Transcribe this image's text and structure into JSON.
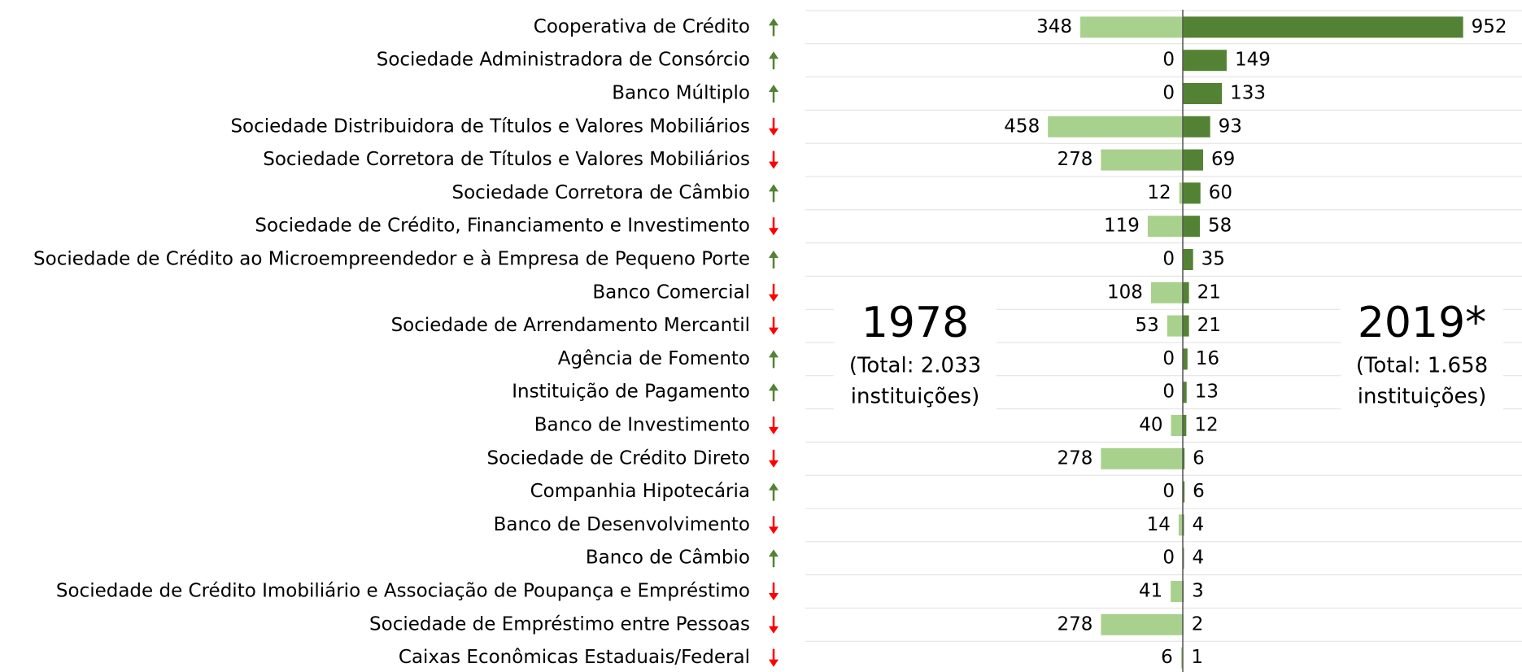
{
  "chart_data": {
    "type": "butterfly-bar",
    "categories": [
      "Cooperativa de Crédito",
      "Sociedade Administradora de Consórcio",
      "Banco Múltiplo",
      "Sociedade Distribuidora de Títulos e Valores Mobiliários",
      "Sociedade Corretora de Títulos e Valores Mobiliários",
      "Sociedade Corretora de Câmbio",
      "Sociedade de Crédito, Financiamento e Investimento",
      "Sociedade de Crédito ao Microempreendedor e à Empresa de Pequeno Porte",
      "Banco Comercial",
      "Sociedade de Arrendamento Mercantil",
      "Agência de Fomento",
      "Instituição de Pagamento",
      "Banco de Investimento",
      "Sociedade de Crédito Direto",
      "Companhia Hipotecária",
      "Banco de Desenvolvimento",
      "Banco de Câmbio",
      "Sociedade de Crédito Imobiliário e Associação de Poupança e Empréstimo",
      "Sociedade de Empréstimo entre Pessoas",
      "Caixas Econômicas Estaduais/Federal"
    ],
    "series": [
      {
        "name": "1978",
        "color": "#a9d18e",
        "side": "left",
        "values": [
          348,
          0,
          0,
          458,
          278,
          12,
          119,
          0,
          108,
          53,
          0,
          0,
          40,
          278,
          0,
          14,
          0,
          41,
          278,
          6
        ]
      },
      {
        "name": "2019*",
        "color": "#548235",
        "side": "right",
        "values": [
          952,
          149,
          133,
          93,
          69,
          60,
          58,
          35,
          21,
          21,
          16,
          13,
          12,
          6,
          6,
          4,
          4,
          3,
          2,
          1
        ]
      }
    ],
    "annotations": [
      {
        "year": "1978",
        "lines": [
          "(Total: 2.033",
          "instituições)"
        ]
      },
      {
        "year": "2019*",
        "lines": [
          "(Total: 1.658",
          "instituições)"
        ]
      }
    ],
    "xlim": [
      0,
      1000
    ],
    "up_color": "#548235",
    "down_color": "#ff0000"
  }
}
